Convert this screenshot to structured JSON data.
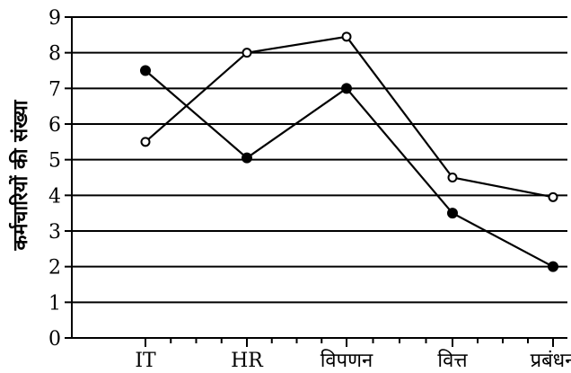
{
  "chart_data": {
    "type": "line",
    "categories": [
      "IT",
      "HR",
      "विपणन",
      "वित्त",
      "प्रबंधन"
    ],
    "ylabel": "कर्मचारियों की संख्या",
    "xlabel": "",
    "ylim": [
      0,
      9
    ],
    "yticks": [
      0,
      1,
      2,
      3,
      4,
      5,
      6,
      7,
      8,
      9
    ],
    "grid": true,
    "series": [
      {
        "marker": "filled-circle",
        "values": [
          7.5,
          5.05,
          7.0,
          3.5,
          2.0
        ]
      },
      {
        "marker": "open-circle",
        "values": [
          5.5,
          8.0,
          8.45,
          4.5,
          3.95
        ]
      }
    ]
  },
  "colors": {
    "line": "#000000",
    "background": "#ffffff"
  }
}
